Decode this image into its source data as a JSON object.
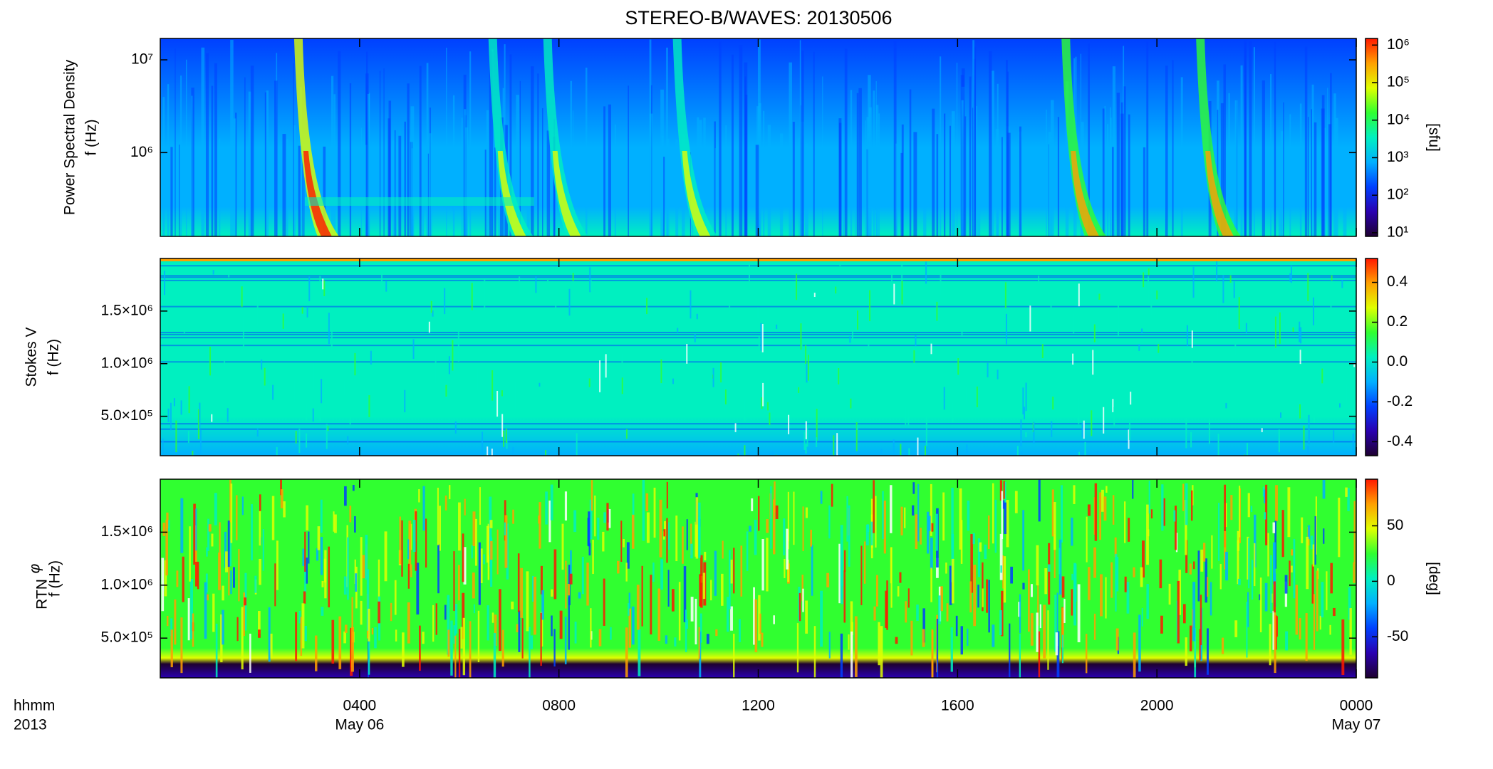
{
  "chart_data": [
    {
      "type": "spectrogram",
      "title": "STEREO-B/WAVES: 20130506",
      "ylabel": "Power Spectral Density",
      "ylabel2": "f (Hz)",
      "ylog": true,
      "ylim": [
        125000,
        17000000
      ],
      "yticks": [
        {
          "value": 1000000,
          "label": "10⁶"
        },
        {
          "value": 10000000,
          "label": "10⁷"
        }
      ],
      "xlim": [
        0,
        24
      ],
      "clog": true,
      "clim": [
        8,
        1500000
      ],
      "cticks": [
        {
          "value": 10,
          "label": "10¹"
        },
        {
          "value": 100,
          "label": "10²"
        },
        {
          "value": 1000,
          "label": "10³"
        },
        {
          "value": 10000,
          "label": "10⁴"
        },
        {
          "value": 100000,
          "label": "10⁵"
        },
        {
          "value": 1000000,
          "label": "10⁶"
        }
      ],
      "clabel": "[sfu]",
      "colormap": [
        "#1e0030",
        "#2a00b0",
        "#0040ff",
        "#00b0ff",
        "#00f0c0",
        "#30ff30",
        "#e0ff00",
        "#ffa000",
        "#ff1800"
      ]
    },
    {
      "type": "spectrogram",
      "ylabel": "Stokes V",
      "ylabel2": "f (Hz)",
      "ylog": false,
      "ylim": [
        125000,
        2000000
      ],
      "yticks": [
        {
          "value": 500000,
          "label": "5.0×10⁵"
        },
        {
          "value": 1000000,
          "label": "1.0×10⁶"
        },
        {
          "value": 1500000,
          "label": "1.5×10⁶"
        }
      ],
      "xlim": [
        0,
        24
      ],
      "clog": false,
      "clim": [
        -0.47,
        0.52
      ],
      "cticks": [
        -0.4,
        -0.2,
        {
          "value": 0,
          "label": "0.0"
        },
        0.2,
        0.4
      ],
      "colormap": [
        "#1e0030",
        "#2a00b0",
        "#0040ff",
        "#00b0ff",
        "#00f0c0",
        "#30ff30",
        "#e0ff00",
        "#ffa000",
        "#ff1800"
      ]
    },
    {
      "type": "spectrogram",
      "ylabel": "φ",
      "ylabel_sub": "RTN",
      "ylabel2": "f (Hz)",
      "ylog": false,
      "ylim": [
        125000,
        2000000
      ],
      "yticks": [
        {
          "value": 500000,
          "label": "5.0×10⁵"
        },
        {
          "value": 1000000,
          "label": "1.0×10⁶"
        },
        {
          "value": 1500000,
          "label": "1.5×10⁶"
        }
      ],
      "xlim": [
        0,
        24
      ],
      "xticks": [
        {
          "value": 4,
          "label": "0400"
        },
        {
          "value": 8,
          "label": "0800"
        },
        {
          "value": 12,
          "label": "1200"
        },
        {
          "value": 16,
          "label": "1600"
        },
        {
          "value": 20,
          "label": "2000"
        },
        {
          "value": 24,
          "label": "0000"
        }
      ],
      "date_labels": [
        {
          "value": 4,
          "label": "May 06"
        },
        {
          "value": 24,
          "label": "May 07"
        }
      ],
      "xlabel_lines": [
        "hhmm",
        "2013"
      ],
      "clog": false,
      "clim": [
        -87,
        92
      ],
      "cticks": [
        -50,
        0,
        50
      ],
      "clabel": "[deg]",
      "colormap": [
        "#1e0030",
        "#2a00b0",
        "#0040ff",
        "#00b0ff",
        "#00f0c0",
        "#30ff30",
        "#e0ff00",
        "#ffa000",
        "#ff1800"
      ]
    }
  ]
}
